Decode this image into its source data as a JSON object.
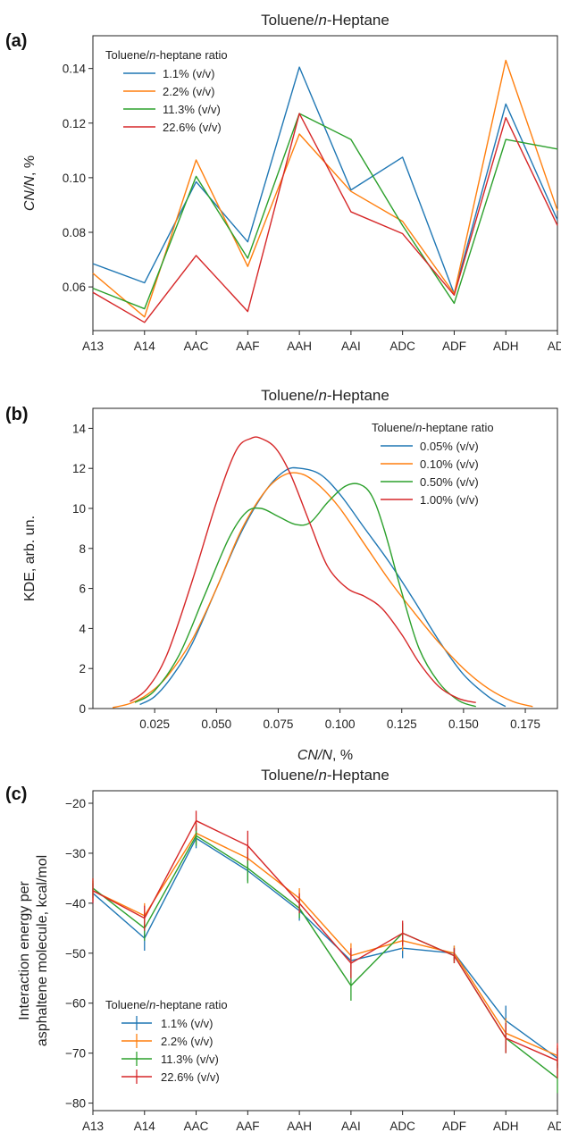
{
  "chart_data": [
    {
      "panel": "(a)",
      "type": "line",
      "title": "Toluene/n-Heptane",
      "xlabel": "",
      "ylabel": "CN/N, %",
      "categories": [
        "A13",
        "A14",
        "AAC",
        "AAF",
        "AAH",
        "AAI",
        "ADC",
        "ADF",
        "ADH",
        "ADI"
      ],
      "ylim": [
        0.044,
        0.152
      ],
      "yticks": [
        0.06,
        0.08,
        0.1,
        0.12,
        0.14
      ],
      "ytick_labels": [
        "0.06",
        "0.08",
        "0.10",
        "0.12",
        "0.14"
      ],
      "legend": {
        "title": "Toluene/n-heptane ratio",
        "position": "top-left"
      },
      "series": [
        {
          "name": "1.1% (v/v)",
          "color": "#1f77b4",
          "values": [
            0.0685,
            0.0615,
            0.0985,
            0.0765,
            0.1405,
            0.0955,
            0.1075,
            0.0575,
            0.127,
            0.0845
          ]
        },
        {
          "name": "2.2% (v/v)",
          "color": "#ff7f0e",
          "values": [
            0.065,
            0.049,
            0.1065,
            0.0675,
            0.116,
            0.095,
            0.084,
            0.0575,
            0.143,
            0.088
          ]
        },
        {
          "name": "11.3% (v/v)",
          "color": "#2ca02c",
          "values": [
            0.0595,
            0.052,
            0.1005,
            0.0705,
            0.1235,
            0.114,
            0.0825,
            0.054,
            0.114,
            0.1105
          ]
        },
        {
          "name": "22.6% (v/v)",
          "color": "#d62728",
          "values": [
            0.058,
            0.047,
            0.0715,
            0.051,
            0.1235,
            0.0875,
            0.0795,
            0.057,
            0.122,
            0.0825
          ]
        }
      ]
    },
    {
      "panel": "(b)",
      "type": "line",
      "title": "Toluene/n-Heptane",
      "xlabel": "CN/N, %",
      "ylabel": "KDE, arb. un.",
      "xlim": [
        0.0,
        0.188
      ],
      "ylim": [
        0,
        15
      ],
      "xticks": [
        0.025,
        0.05,
        0.075,
        0.1,
        0.125,
        0.15,
        0.175
      ],
      "xtick_labels": [
        "0.025",
        "0.050",
        "0.075",
        "0.100",
        "0.125",
        "0.150",
        "0.175"
      ],
      "yticks": [
        0,
        2,
        4,
        6,
        8,
        10,
        12,
        14
      ],
      "ytick_labels": [
        "0",
        "2",
        "4",
        "6",
        "8",
        "10",
        "12",
        "14"
      ],
      "legend": {
        "title": "Toluene/n-heptane ratio",
        "position": "top-right"
      },
      "series": [
        {
          "name": "0.05% (v/v)",
          "color": "#1f77b4",
          "x": [
            0.019,
            0.025,
            0.032,
            0.04,
            0.05,
            0.06,
            0.07,
            0.078,
            0.084,
            0.092,
            0.1,
            0.11,
            0.12,
            0.13,
            0.14,
            0.15,
            0.16,
            0.167
          ],
          "y": [
            0.2,
            0.6,
            1.6,
            3.2,
            6.0,
            8.8,
            10.9,
            11.9,
            12.0,
            11.7,
            10.7,
            9.0,
            7.3,
            5.4,
            3.4,
            1.7,
            0.6,
            0.1
          ]
        },
        {
          "name": "0.10% (v/v)",
          "color": "#ff7f0e",
          "x": [
            0.008,
            0.015,
            0.022,
            0.03,
            0.04,
            0.05,
            0.06,
            0.07,
            0.078,
            0.085,
            0.092,
            0.1,
            0.11,
            0.12,
            0.13,
            0.14,
            0.15,
            0.16,
            0.17,
            0.178
          ],
          "y": [
            0.05,
            0.25,
            0.7,
            1.6,
            3.4,
            6.0,
            8.9,
            10.9,
            11.7,
            11.7,
            11.1,
            10.0,
            8.2,
            6.4,
            4.8,
            3.3,
            2.0,
            1.0,
            0.35,
            0.1
          ]
        },
        {
          "name": "0.50% (v/v)",
          "color": "#2ca02c",
          "x": [
            0.017,
            0.025,
            0.035,
            0.045,
            0.055,
            0.062,
            0.068,
            0.075,
            0.082,
            0.088,
            0.095,
            0.102,
            0.108,
            0.113,
            0.118,
            0.125,
            0.132,
            0.14,
            0.148,
            0.155
          ],
          "y": [
            0.3,
            0.9,
            2.7,
            5.6,
            8.5,
            9.8,
            10.0,
            9.6,
            9.2,
            9.3,
            10.3,
            11.1,
            11.2,
            10.6,
            8.9,
            5.8,
            3.0,
            1.3,
            0.4,
            0.1
          ]
        },
        {
          "name": "1.00% (v/v)",
          "color": "#d62728",
          "x": [
            0.015,
            0.022,
            0.03,
            0.04,
            0.05,
            0.058,
            0.064,
            0.068,
            0.074,
            0.08,
            0.088,
            0.095,
            0.103,
            0.11,
            0.117,
            0.125,
            0.132,
            0.14,
            0.148,
            0.155
          ],
          "y": [
            0.35,
            1.0,
            2.7,
            6.3,
            10.3,
            12.9,
            13.5,
            13.5,
            13.0,
            11.7,
            9.2,
            7.1,
            6.0,
            5.6,
            5.0,
            3.7,
            2.3,
            1.1,
            0.5,
            0.3
          ]
        }
      ]
    },
    {
      "panel": "(c)",
      "type": "line",
      "title": "Toluene/n-Heptane",
      "xlabel": "",
      "ylabel": "Interaction energy per asphaltene molecule, kcal/mol",
      "ylabel_lines": [
        "Interaction energy per",
        "asphaltene molecule, kcal/mol"
      ],
      "categories": [
        "A13",
        "A14",
        "AAC",
        "AAF",
        "AAH",
        "AAI",
        "ADC",
        "ADF",
        "ADH",
        "ADI"
      ],
      "ylim": [
        -81.5,
        -17.5
      ],
      "yticks": [
        -80,
        -70,
        -60,
        -50,
        -40,
        -30,
        -20
      ],
      "ytick_labels": [
        "−80",
        "−70",
        "−60",
        "−50",
        "−40",
        "−30",
        "−20"
      ],
      "error_bars": true,
      "legend": {
        "title": "Toluene/n-heptane ratio",
        "position": "bottom-left"
      },
      "series": [
        {
          "name": "1.1% (v/v)",
          "color": "#1f77b4",
          "values": [
            -38.0,
            -47.0,
            -27.0,
            -33.5,
            -41.5,
            -51.5,
            -49.0,
            -50.0,
            -63.5,
            -71.0
          ],
          "errors": [
            2.0,
            2.5,
            2.0,
            2.0,
            2.0,
            2.0,
            2.0,
            1.5,
            3.0,
            2.0
          ]
        },
        {
          "name": "2.2% (v/v)",
          "color": "#ff7f0e",
          "values": [
            -37.5,
            -42.5,
            -26.0,
            -31.0,
            -39.0,
            -50.5,
            -47.5,
            -50.0,
            -66.0,
            -70.5
          ],
          "errors": [
            2.0,
            2.5,
            2.0,
            2.0,
            2.0,
            2.5,
            2.0,
            1.5,
            3.0,
            2.0
          ]
        },
        {
          "name": "11.3% (v/v)",
          "color": "#2ca02c",
          "values": [
            -37.0,
            -45.0,
            -26.5,
            -33.0,
            -41.0,
            -56.5,
            -46.0,
            -50.5,
            -67.0,
            -75.0
          ],
          "errors": [
            2.0,
            2.5,
            2.0,
            3.0,
            2.0,
            3.0,
            2.0,
            1.5,
            3.0,
            3.0
          ]
        },
        {
          "name": "22.6% (v/v)",
          "color": "#d62728",
          "values": [
            -37.5,
            -43.0,
            -23.5,
            -28.5,
            -40.0,
            -52.0,
            -46.0,
            -50.5,
            -67.0,
            -71.5
          ],
          "errors": [
            2.5,
            2.5,
            2.0,
            3.0,
            2.0,
            3.0,
            2.5,
            1.5,
            3.0,
            3.5
          ]
        }
      ]
    }
  ]
}
